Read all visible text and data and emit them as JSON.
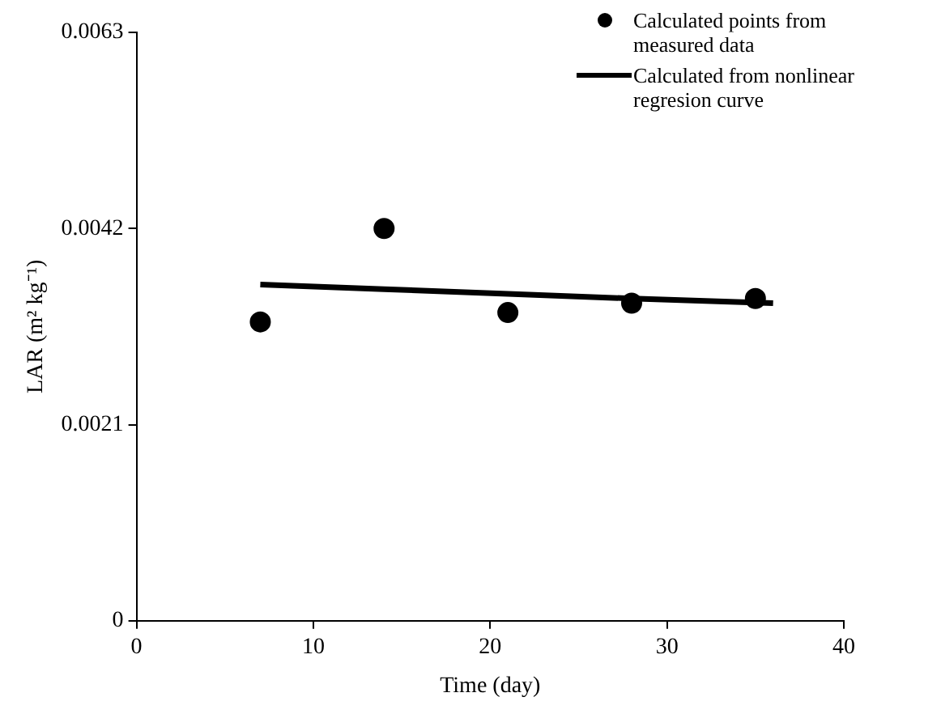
{
  "chart_data": {
    "type": "scatter",
    "xlabel": "Time (day)",
    "ylabel": "LAR (m² kg⁻¹)",
    "xlim": [
      0,
      40
    ],
    "xticks": [
      0,
      10,
      20,
      30,
      40
    ],
    "ylim": [
      0,
      0.0063
    ],
    "yticks": [
      0,
      0.0021,
      0.0042,
      0.0063
    ],
    "grid": false,
    "legend": "top right",
    "marker": "circle",
    "series": [
      {
        "name": "Calculated points from measured data",
        "color": "#000000",
        "x": [
          7,
          14,
          21,
          28,
          35
        ],
        "values": [
          0.0032,
          0.0042,
          0.0033,
          0.0034,
          0.00345
        ]
      },
      {
        "name": "Calculated from nonlinear regresion curve",
        "type": "line",
        "color": "#000000",
        "x": [
          7,
          14,
          21,
          28,
          36
        ],
        "values": [
          0.0036,
          0.00355,
          0.0035,
          0.00345,
          0.0034
        ],
        "marker": "none",
        "line_style": "solid"
      }
    ]
  }
}
